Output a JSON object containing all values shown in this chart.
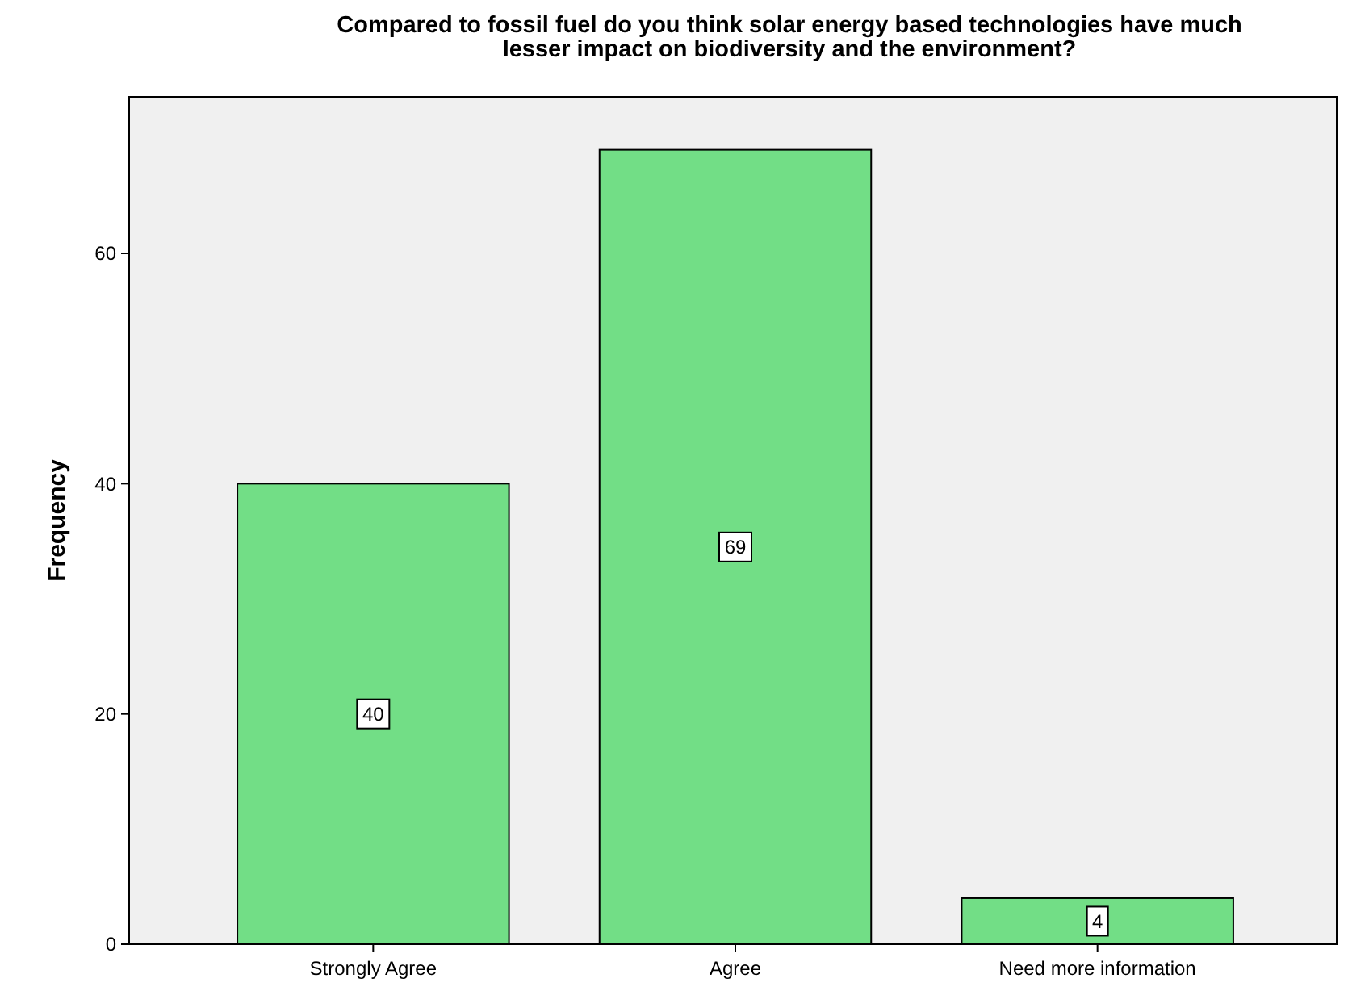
{
  "chart_data": {
    "type": "bar",
    "title": "Compared to fossil fuel do you think solar energy based technologies have much lesser impact on biodiversity and the environment?",
    "ylabel": "Frequency",
    "categories": [
      "Strongly Agree",
      "Agree",
      "Need more information"
    ],
    "values": [
      40,
      69,
      4
    ],
    "color": "#72de86",
    "ylim": [
      0,
      73.6
    ],
    "yticks": [
      0,
      20,
      40,
      60
    ],
    "grid": false,
    "data_labels": true
  }
}
